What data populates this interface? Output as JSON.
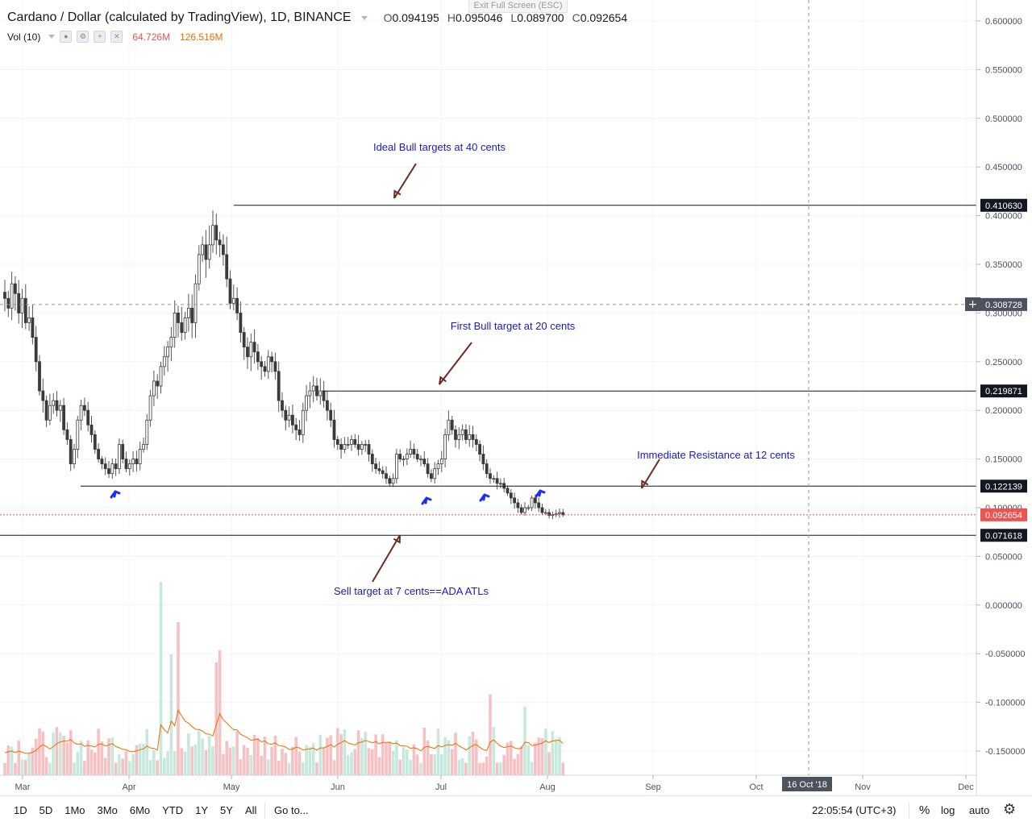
{
  "header": {
    "symbol_title": "Cardano / Dollar (calculated by TradingView), 1D, BINANCE",
    "ohlc": [
      {
        "label": "O",
        "value": "0.094195"
      },
      {
        "label": "H",
        "value": "0.095046"
      },
      {
        "label": "L",
        "value": "0.089700"
      },
      {
        "label": "C",
        "value": "0.092654"
      }
    ],
    "volume_label": "Vol (10)",
    "volume_value": "64.726M",
    "volume_ma_value": "126.516M",
    "exit_fullscreen": "Exit Full Screen (ESC)"
  },
  "colors": {
    "up": "#26a69a",
    "down": "#ef5350",
    "candle_body": "#3a3a3a",
    "annotation_text": "#1b1bb5",
    "arrow": "#6d2b1f",
    "blue_marker": "#1d2ff5",
    "volume_up": "#c7e8dd",
    "volume_down": "#f6c1c3",
    "volume_ma": "#ef6c00",
    "price_line": "#ef5350"
  },
  "chart_data": {
    "type": "candlestick",
    "title": "Cardano / Dollar (calculated by TradingView), 1D, BINANCE",
    "y_axis": {
      "ticks": [
        "0.600000",
        "0.550000",
        "0.500000",
        "0.450000",
        "0.400000",
        "0.350000",
        "0.300000",
        "0.250000",
        "0.200000",
        "0.150000",
        "0.100000",
        "0.050000",
        "0.000000",
        "-0.050000",
        "-0.100000",
        "-0.150000"
      ],
      "ylim": [
        -0.18,
        0.62
      ]
    },
    "x_axis": {
      "ticks": [
        "Mar",
        "Apr",
        "May",
        "Jun",
        "Jul",
        "Aug",
        "Sep",
        "Oct",
        "Nov",
        "Dec"
      ],
      "crosshair_label": "16 Oct '18"
    },
    "closes": [
      0.315,
      0.305,
      0.33,
      0.32,
      0.3,
      0.315,
      0.29,
      0.295,
      0.275,
      0.25,
      0.22,
      0.21,
      0.19,
      0.205,
      0.21,
      0.2,
      0.205,
      0.18,
      0.17,
      0.145,
      0.16,
      0.19,
      0.205,
      0.2,
      0.185,
      0.175,
      0.16,
      0.15,
      0.145,
      0.14,
      0.135,
      0.145,
      0.14,
      0.165,
      0.15,
      0.14,
      0.145,
      0.15,
      0.145,
      0.16,
      0.165,
      0.19,
      0.215,
      0.23,
      0.225,
      0.245,
      0.255,
      0.265,
      0.275,
      0.3,
      0.29,
      0.28,
      0.295,
      0.305,
      0.29,
      0.33,
      0.36,
      0.37,
      0.355,
      0.37,
      0.39,
      0.375,
      0.37,
      0.36,
      0.335,
      0.31,
      0.315,
      0.3,
      0.28,
      0.265,
      0.255,
      0.27,
      0.26,
      0.25,
      0.245,
      0.24,
      0.255,
      0.25,
      0.24,
      0.21,
      0.2,
      0.19,
      0.195,
      0.185,
      0.18,
      0.175,
      0.2,
      0.215,
      0.22,
      0.225,
      0.215,
      0.22,
      0.21,
      0.2,
      0.19,
      0.17,
      0.165,
      0.16,
      0.165,
      0.165,
      0.17,
      0.165,
      0.16,
      0.165,
      0.165,
      0.155,
      0.145,
      0.14,
      0.138,
      0.135,
      0.13,
      0.125,
      0.13,
      0.155,
      0.15,
      0.15,
      0.155,
      0.16,
      0.155,
      0.15,
      0.15,
      0.145,
      0.135,
      0.13,
      0.14,
      0.145,
      0.15,
      0.175,
      0.19,
      0.18,
      0.17,
      0.175,
      0.18,
      0.17,
      0.175,
      0.17,
      0.165,
      0.155,
      0.145,
      0.135,
      0.13,
      0.13,
      0.125,
      0.125,
      0.12,
      0.115,
      0.11,
      0.105,
      0.1,
      0.095,
      0.1,
      0.1,
      0.11,
      0.105,
      0.1,
      0.095,
      0.095,
      0.092,
      0.093,
      0.094,
      0.095,
      0.0927
    ],
    "horizontal_levels": [
      {
        "label": "0.410630",
        "value": 0.41063
      },
      {
        "label": "0.308728",
        "value": 0.308728
      },
      {
        "label": "0.219871",
        "value": 0.219871
      },
      {
        "label": "0.122139",
        "value": 0.122139
      },
      {
        "label": "0.092654",
        "value": 0.092654
      },
      {
        "label": "0.071618",
        "value": 0.071618
      }
    ],
    "annotations": [
      "Ideal Bull targets at 40 cents",
      "First Bull target at 20 cents",
      "Immediate Resistance at 12 cents",
      "Sell target at 7 cents==ADA ATLs"
    ],
    "volume": {
      "label": "Vol (10)",
      "last": "64.726M",
      "ma": "126.516M"
    }
  },
  "bottom_bar": {
    "ranges": [
      "1D",
      "5D",
      "1Mo",
      "3Mo",
      "6Mo",
      "YTD",
      "1Y",
      "5Y",
      "All"
    ],
    "goto": "Go to...",
    "clock": "22:05:54 (UTC+3)",
    "percent": "%",
    "log": "log",
    "auto": "auto"
  }
}
